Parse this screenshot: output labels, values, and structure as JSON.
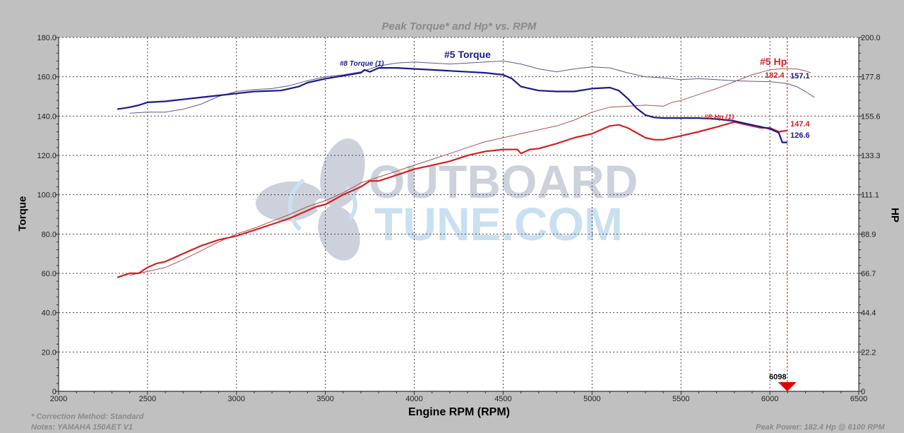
{
  "chart_data": {
    "type": "line",
    "title": "Peak Torque* and Hp* vs. RPM",
    "xlabel": "Engine RPM (RPM)",
    "ylabel": "Torque",
    "y2label": "HP",
    "xlim": [
      2000,
      6500
    ],
    "ylim": [
      0,
      180
    ],
    "y2lim": [
      0,
      200
    ],
    "x_ticks": [
      "2000",
      "2500",
      "3000",
      "3500",
      "4000",
      "4500",
      "5000",
      "5500",
      "6000",
      "6500"
    ],
    "y_ticks": [
      "0",
      "20.0",
      "40.0",
      "60.0",
      "80.0",
      "100.0",
      "120.0",
      "140.0",
      "160.0",
      "180.0"
    ],
    "y2_ticks": [
      "0",
      "22.2",
      "44.4",
      "66.7",
      "88.9",
      "111.1",
      "133.3",
      "155.6",
      "177.8",
      "200.0"
    ],
    "grid": true,
    "series": [
      {
        "name": "#5 Torque",
        "axis": "left",
        "color": "#1a1a8c",
        "width": 2.2,
        "x": [
          2330,
          2400,
          2450,
          2500,
          2600,
          2700,
          2800,
          2900,
          3000,
          3100,
          3250,
          3350,
          3400,
          3500,
          3600,
          3700,
          3720,
          3750,
          3800,
          3900,
          4000,
          4100,
          4200,
          4300,
          4400,
          4500,
          4550,
          4600,
          4700,
          4800,
          4900,
          5000,
          5100,
          5150,
          5200,
          5250,
          5300,
          5350,
          5400,
          5500,
          5600,
          5700,
          5800,
          5900,
          5950,
          6000,
          6050,
          6070,
          6098
        ],
        "values": [
          143.5,
          144.5,
          145.5,
          147,
          147.5,
          148.5,
          149.5,
          150.5,
          151.5,
          152.5,
          153,
          155,
          157,
          159,
          160.5,
          162,
          163.5,
          162.5,
          164.5,
          164.5,
          164,
          163.5,
          163,
          162.5,
          162,
          161,
          159,
          155,
          153,
          152.5,
          152.5,
          154,
          154.5,
          153,
          149,
          144,
          140.5,
          139.3,
          139,
          139,
          139,
          138.5,
          137.5,
          135.5,
          134.5,
          133.5,
          131.5,
          126.6,
          126.6
        ]
      },
      {
        "name": "#8 Torque (1)",
        "axis": "left",
        "color": "#5a5a8a",
        "width": 1,
        "x": [
          2400,
          2500,
          2600,
          2700,
          2800,
          2900,
          3000,
          3100,
          3200,
          3300,
          3400,
          3500,
          3600,
          3700,
          3800,
          3900,
          4000,
          4100,
          4200,
          4300,
          4400,
          4500,
          4600,
          4700,
          4800,
          4900,
          5000,
          5100,
          5200,
          5300,
          5400,
          5500,
          5600,
          5700,
          5800,
          5900,
          6000,
          6100,
          6150,
          6200,
          6250
        ],
        "values": [
          141.5,
          142,
          142,
          143.5,
          146,
          150,
          152.5,
          153.5,
          154,
          155.5,
          158,
          160,
          161,
          162.5,
          165.5,
          167,
          167.5,
          167,
          166.5,
          167,
          167.5,
          168,
          166.5,
          164,
          162.5,
          164,
          165,
          164.5,
          162,
          160,
          159.5,
          158.5,
          159,
          158.5,
          158,
          157.7,
          157.5,
          156.5,
          155,
          152.5,
          149.5
        ]
      },
      {
        "name": "#5 Hp",
        "axis": "right",
        "color": "#d42020",
        "width": 2.2,
        "x": [
          2330,
          2400,
          2450,
          2500,
          2550,
          2600,
          2700,
          2800,
          2900,
          3000,
          3100,
          3200,
          3300,
          3400,
          3450,
          3500,
          3600,
          3700,
          3750,
          3800,
          3900,
          4000,
          4100,
          4200,
          4300,
          4400,
          4500,
          4580,
          4600,
          4650,
          4700,
          4800,
          4900,
          5000,
          5050,
          5100,
          5150,
          5200,
          5250,
          5300,
          5350,
          5400,
          5500,
          5600,
          5700,
          5800,
          5850,
          5900,
          5950,
          6000,
          6050,
          6098
        ],
        "values": [
          64.4,
          66.7,
          66.7,
          70,
          72.2,
          73.3,
          77.8,
          82.2,
          85.6,
          87.8,
          91.1,
          94.4,
          97.8,
          102.2,
          104.4,
          105.6,
          111.1,
          115.6,
          118.9,
          118.9,
          122.2,
          125.6,
          127.8,
          130,
          133.3,
          135.6,
          136.7,
          136.7,
          134.4,
          136.7,
          137.2,
          140,
          143.3,
          145.6,
          147.8,
          150,
          150.6,
          148.9,
          146.1,
          143.3,
          142.2,
          142.2,
          144.4,
          146.7,
          149.4,
          152.2,
          151.1,
          150,
          148.9,
          148.9,
          146.7,
          147.4
        ]
      },
      {
        "name": "#8 Hp (1)",
        "axis": "right",
        "color": "#b05050",
        "width": 1,
        "x": [
          2400,
          2500,
          2600,
          2700,
          2800,
          2900,
          3000,
          3100,
          3200,
          3300,
          3400,
          3500,
          3600,
          3700,
          3800,
          3900,
          4000,
          4100,
          4200,
          4300,
          4400,
          4500,
          4600,
          4700,
          4800,
          4900,
          5000,
          5100,
          5200,
          5300,
          5400,
          5450,
          5500,
          5600,
          5700,
          5800,
          5900,
          6000,
          6050,
          6100,
          6150,
          6200,
          6230
        ],
        "values": [
          65.6,
          67.8,
          70,
          74.4,
          79.4,
          84.4,
          88.9,
          92.2,
          96.1,
          100,
          104.4,
          107.8,
          112.2,
          117.8,
          121.1,
          124.4,
          127.8,
          131.1,
          134.4,
          137.8,
          141.1,
          143.3,
          145.6,
          147.8,
          150,
          153.3,
          157.8,
          160.6,
          161.1,
          161.7,
          161.1,
          163.3,
          164.4,
          167.8,
          171.1,
          175,
          178.9,
          181.7,
          182.2,
          182.4,
          182.2,
          181.1,
          180
        ]
      }
    ],
    "annotations": [
      {
        "text": "#5 Torque",
        "color": "#1a1a8c"
      },
      {
        "text": "#8 Torque (1)",
        "color": "#1a1a8c"
      },
      {
        "text": "#5 Hp",
        "color": "#d42020"
      },
      {
        "text": "#8 Hp (1)",
        "color": "#d42020"
      },
      {
        "text": "182.4",
        "color": "#d42020"
      },
      {
        "text": "157.1",
        "color": "#1a1a8c"
      },
      {
        "text": "147.4",
        "color": "#d42020"
      },
      {
        "text": "126.6",
        "color": "#1a1a8c"
      },
      {
        "text": "6098",
        "color": "#000000"
      }
    ],
    "cursor_rpm": 6098,
    "watermark": {
      "line1": "OUTBOARD",
      "line2": "TUNE.COM"
    }
  },
  "labels": {
    "title": "Peak Torque* and Hp* vs. RPM",
    "xlabel": "Engine RPM (RPM)",
    "ylabel_left": "Torque",
    "ylabel_right": "HP",
    "correction": "* Correction Method: Standard",
    "notes": "Notes: YAMAHA 150AET V1",
    "peak_power": "Peak Power: 182.4 Hp @ 6100 RPM",
    "ann_5_torque": "#5 Torque",
    "ann_8_torque": "#8 Torque (1)",
    "ann_5_hp": "#5 Hp",
    "ann_8_hp": "#8 Hp (1)",
    "val_182": "182.4",
    "val_157": "157.1",
    "val_147": "147.4",
    "val_126": "126.6",
    "cursor": "6098",
    "wm1": "OUTBOARD",
    "wm2": "TUNE.COM"
  }
}
